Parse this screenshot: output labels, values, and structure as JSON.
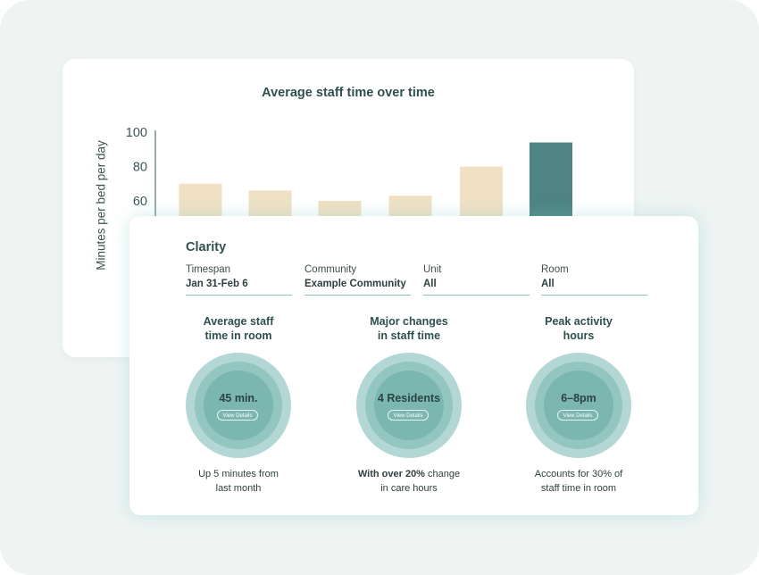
{
  "chart_card": {
    "title": "Average staff time over time",
    "ylabel": "Minutes per bed per day"
  },
  "chart_data": {
    "type": "bar",
    "title": "Average staff time over time",
    "ylabel": "Minutes per bed per day",
    "xlabel": "",
    "yticks": [
      60,
      80,
      100
    ],
    "ylim": [
      40,
      100
    ],
    "values": [
      70,
      66,
      60,
      63,
      80,
      94
    ],
    "highlight_index": 5,
    "colors": {
      "bar": "#f0e1c4",
      "highlight": "#4e8483",
      "axis": "#3d5555"
    }
  },
  "panel": {
    "title": "Clarity",
    "filters": [
      {
        "label": "Timespan",
        "value": "Jan 31-Feb 6"
      },
      {
        "label": "Community",
        "value": "Example Community"
      },
      {
        "label": "Unit",
        "value": "All"
      },
      {
        "label": "Room",
        "value": "All"
      }
    ],
    "metrics": [
      {
        "title_line1": "Average staff",
        "title_line2": "time in room",
        "value": "45 min.",
        "button": "View Details",
        "caption_line1": "Up 5 minutes from",
        "caption_line2": "last month"
      },
      {
        "title_line1": "Major changes",
        "title_line2": "in staff time",
        "value": "4 Residents",
        "button": "View Details",
        "caption_line1_bold": "With over 20%",
        "caption_line1_rest": " change",
        "caption_line2": "in care hours"
      },
      {
        "title_line1": "Peak activity",
        "title_line2": "hours",
        "value": "6–8pm",
        "button": "View Details",
        "caption_line1": "Accounts for 30% of",
        "caption_line2": "staff time in room"
      }
    ]
  }
}
